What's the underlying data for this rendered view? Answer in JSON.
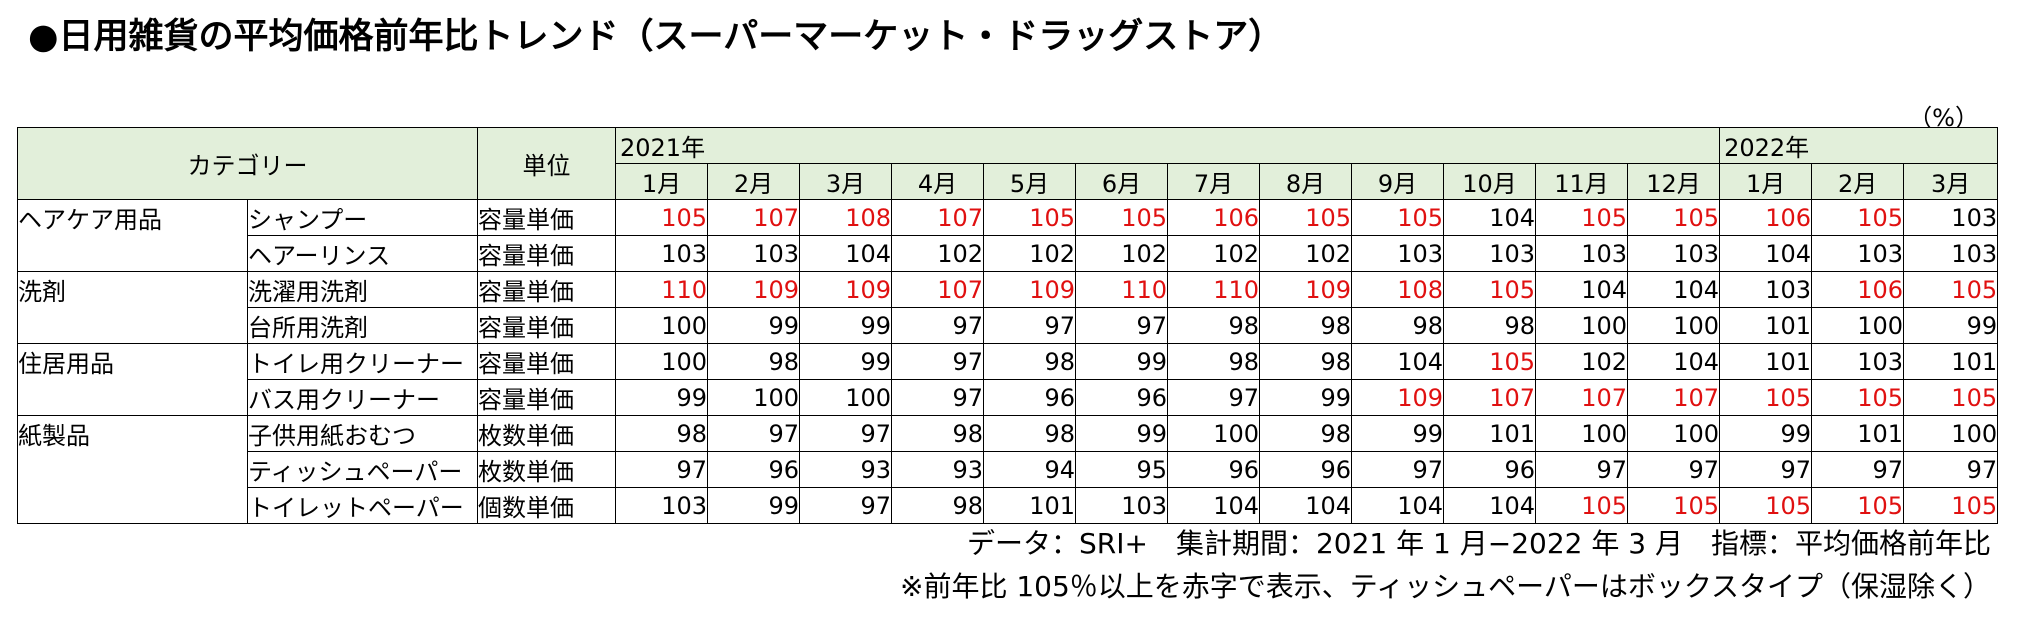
{
  "title": "●日用雑貨の平均価格前年比トレンド（スーパーマーケット・ドラッグストア）",
  "unit_note": "（%）",
  "header": {
    "category": "カテゴリー",
    "unit": "単位",
    "year1": "2021年",
    "year2": "2022年",
    "months": [
      "1月",
      "2月",
      "3月",
      "4月",
      "5月",
      "6月",
      "7月",
      "8月",
      "9月",
      "10月",
      "11月",
      "12月",
      "1月",
      "2月",
      "3月"
    ]
  },
  "rows": [
    {
      "group": "ヘアケア用品",
      "item": "シャンプー",
      "unit": "容量単価",
      "values": [
        "105",
        "107",
        "108",
        "107",
        "105",
        "105",
        "106",
        "105",
        "105",
        "104",
        "105",
        "105",
        "106",
        "105",
        "103"
      ]
    },
    {
      "group": "",
      "item": "ヘアーリンス",
      "unit": "容量単価",
      "values": [
        "103",
        "103",
        "104",
        "102",
        "102",
        "102",
        "102",
        "102",
        "103",
        "103",
        "103",
        "103",
        "104",
        "103",
        "103"
      ]
    },
    {
      "group": "洗剤",
      "item": "洗濯用洗剤",
      "unit": "容量単価",
      "values": [
        "110",
        "109",
        "109",
        "107",
        "109",
        "110",
        "110",
        "109",
        "108",
        "105",
        "104",
        "104",
        "103",
        "106",
        "105"
      ]
    },
    {
      "group": "",
      "item": "台所用洗剤",
      "unit": "容量単価",
      "values": [
        "100",
        "99",
        "99",
        "97",
        "97",
        "97",
        "98",
        "98",
        "98",
        "98",
        "100",
        "100",
        "101",
        "100",
        "99"
      ]
    },
    {
      "group": "住居用品",
      "item": "トイレ用クリーナー",
      "unit": "容量単価",
      "values": [
        "100",
        "98",
        "99",
        "97",
        "98",
        "99",
        "98",
        "98",
        "104",
        "105",
        "102",
        "104",
        "101",
        "103",
        "101"
      ]
    },
    {
      "group": "",
      "item": "バス用クリーナー",
      "unit": "容量単価",
      "values": [
        "99",
        "100",
        "100",
        "97",
        "96",
        "96",
        "97",
        "99",
        "109",
        "107",
        "107",
        "107",
        "105",
        "105",
        "105"
      ]
    },
    {
      "group": "紙製品",
      "item": "子供用紙おむつ",
      "unit": "枚数単価",
      "values": [
        "98",
        "97",
        "97",
        "98",
        "98",
        "99",
        "100",
        "98",
        "99",
        "101",
        "100",
        "100",
        "99",
        "101",
        "100"
      ]
    },
    {
      "group": "",
      "item": "ティッシュペーパー",
      "unit": "枚数単価",
      "values": [
        "97",
        "96",
        "93",
        "93",
        "94",
        "95",
        "96",
        "96",
        "97",
        "96",
        "97",
        "97",
        "97",
        "97",
        "97"
      ]
    },
    {
      "group": "",
      "item": "トイレットペーパー",
      "unit": "個数単価",
      "values": [
        "103",
        "99",
        "97",
        "98",
        "101",
        "103",
        "104",
        "104",
        "104",
        "104",
        "105",
        "105",
        "105",
        "105",
        "105"
      ]
    }
  ],
  "notes": {
    "line1": "データ：SRI+　集計期間：2021 年 1 月−2022 年 3 月　指標：平均価格前年比",
    "line2": "※前年比 105％以上を赤字で表示、ティッシュペーパーはボックスタイプ（保湿除く）"
  },
  "colors": {
    "header_bg": "#e2efda",
    "highlight": "#e01010"
  }
}
